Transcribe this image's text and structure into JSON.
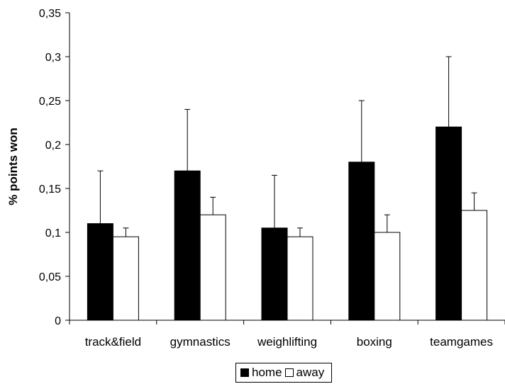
{
  "chart_data": {
    "type": "bar",
    "title": "",
    "xlabel": "",
    "ylabel": "% points won",
    "ylim": [
      0,
      0.35
    ],
    "yticks": [
      0,
      0.05,
      0.1,
      0.15,
      0.2,
      0.25,
      0.3,
      0.35
    ],
    "ytick_labels": [
      "0",
      "0,05",
      "0,1",
      "0,15",
      "0,2",
      "0,25",
      "0,3",
      "0,35"
    ],
    "categories": [
      "track&field",
      "gymnastics",
      "weighlifting",
      "boxing",
      "teamgames"
    ],
    "series": [
      {
        "name": "home",
        "color": "#000000",
        "values": [
          0.11,
          0.17,
          0.105,
          0.18,
          0.22
        ],
        "error_upper": [
          0.17,
          0.24,
          0.165,
          0.25,
          0.3
        ]
      },
      {
        "name": "away",
        "color": "#ffffff",
        "values": [
          0.095,
          0.12,
          0.095,
          0.1,
          0.125
        ],
        "error_upper": [
          0.105,
          0.14,
          0.105,
          0.12,
          0.145
        ]
      }
    ],
    "grid": false,
    "legend_position": "bottom-center"
  }
}
